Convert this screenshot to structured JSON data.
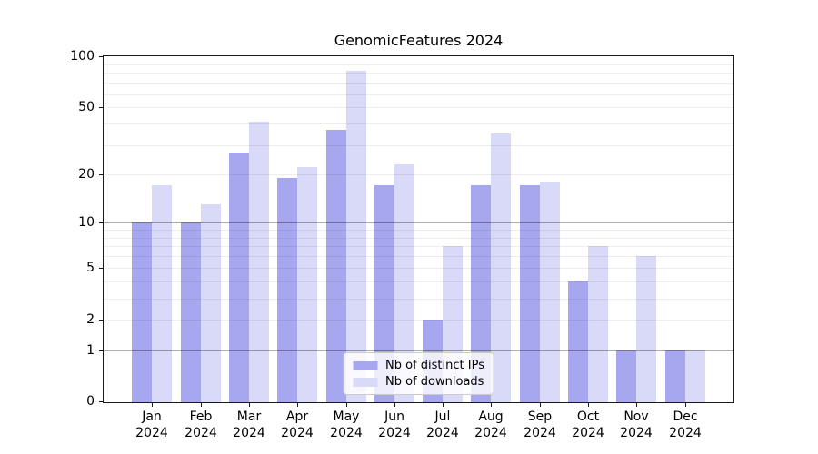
{
  "chart_data": {
    "type": "bar",
    "title": "GenomicFeatures 2024",
    "categories": [
      "Jan 2024",
      "Feb 2024",
      "Mar 2024",
      "Apr 2024",
      "May 2024",
      "Jun 2024",
      "Jul 2024",
      "Aug 2024",
      "Sep 2024",
      "Oct 2024",
      "Nov 2024",
      "Dec 2024"
    ],
    "series": [
      {
        "name": "Nb of distinct IPs",
        "color": "#a7a7f0",
        "values": [
          10,
          10,
          27,
          19,
          37,
          17,
          2,
          17,
          17,
          4,
          1,
          1
        ]
      },
      {
        "name": "Nb of downloads",
        "color": "#d9d9f8",
        "values": [
          17,
          13,
          41,
          22,
          82,
          23,
          7,
          35,
          18,
          7,
          6,
          1
        ]
      }
    ],
    "xlabel": "",
    "ylabel": "",
    "y_axis": {
      "scale": "log10(1+value)",
      "ylim": [
        0,
        100
      ],
      "tick_labels": [
        0,
        1,
        2,
        5,
        10,
        20,
        50,
        100
      ],
      "decade_gridlines": [
        1,
        10
      ],
      "minor_gridlines": [
        2,
        5,
        3,
        4,
        6,
        7,
        8,
        9,
        20,
        50,
        30,
        40,
        60,
        70,
        80,
        90
      ]
    },
    "grid": true,
    "legend": {
      "position": "lower-center-inside"
    }
  }
}
